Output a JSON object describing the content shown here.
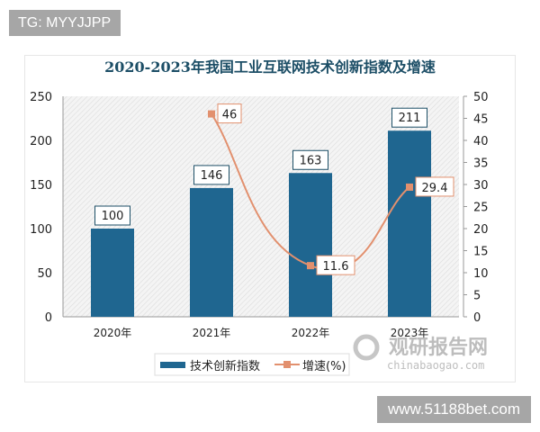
{
  "watermarks": {
    "top_left": "TG: MYYJJPP",
    "bottom_right": "www.51188bet.com",
    "logo_cn": "观研报告网",
    "logo_en": "chinabaogao.com"
  },
  "chart_data": {
    "type": "bar+line",
    "title": "2020-2023年我国工业互联网技术创新指数及增速",
    "categories": [
      "2020年",
      "2021年",
      "2022年",
      "2023年"
    ],
    "series": [
      {
        "name": "技术创新指数",
        "type": "bar",
        "axis": "left",
        "values": [
          100,
          146,
          163,
          211
        ],
        "color": "#1f6690"
      },
      {
        "name": "增速(%)",
        "type": "line",
        "axis": "right",
        "values": [
          null,
          46,
          11.6,
          29.4
        ],
        "color": "#e2906e"
      }
    ],
    "y_left": {
      "range": [
        0,
        250
      ],
      "ticks": [
        0,
        50,
        100,
        150,
        200,
        250
      ]
    },
    "y_right": {
      "range": [
        0,
        50
      ],
      "ticks": [
        0,
        5,
        10,
        15,
        20,
        25,
        30,
        35,
        40,
        45,
        50
      ]
    },
    "legend": "bottom",
    "grid": false
  }
}
